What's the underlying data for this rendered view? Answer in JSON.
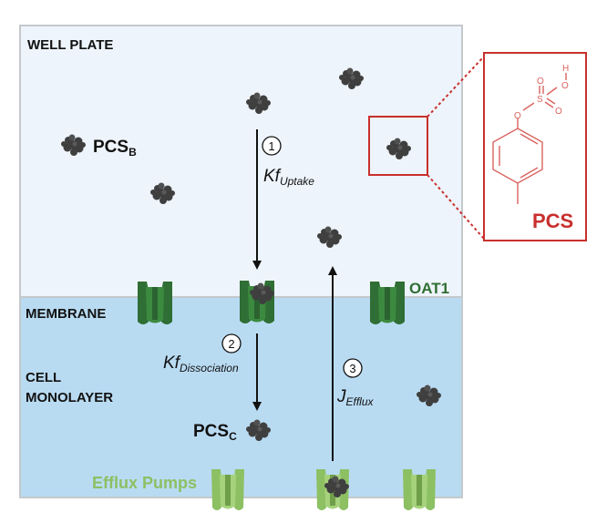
{
  "regions": {
    "well_plate": "WELL PLATE",
    "membrane": "MEMBRANE",
    "cell_monolayer_line1": "CELL",
    "cell_monolayer_line2": "MONOLAYER"
  },
  "labels": {
    "pcs_bulk": "PCS",
    "pcs_bulk_sub": "B",
    "pcs_cell": "PCS",
    "pcs_cell_sub": "C",
    "oat1": "OAT1",
    "efflux_pumps": "Efflux Pumps",
    "inset_title": "PCS"
  },
  "steps": [
    {
      "number": "1",
      "rate": "Kf",
      "subscript": "Uptake"
    },
    {
      "number": "2",
      "rate": "Kf",
      "subscript": "Dissociation"
    },
    {
      "number": "3",
      "rate": "J",
      "subscript": "Efflux"
    }
  ],
  "molecule_atoms": {
    "oxygen_1": "O",
    "sulfur": "S",
    "oxygen_2": "O",
    "oxygen_3": "O",
    "oxygen_4": "O",
    "hydrogen": "H"
  },
  "colors": {
    "well_plate_bg": "#eef4fb",
    "cell_bg": "#b9dbf2",
    "border": "#c4c9cc",
    "molecule": "#3f3f3f",
    "oat1_dark": "#2f6e34",
    "oat1_mid": "#3c8a40",
    "efflux_light": "#8cc063",
    "efflux_dark": "#6f9f49",
    "accent_red": "#c8302c",
    "efflux_text": "#8cc063",
    "oat1_text": "#2f6e34"
  }
}
